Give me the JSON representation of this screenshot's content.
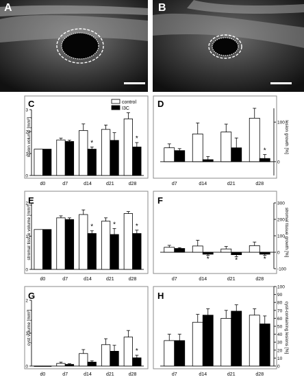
{
  "panels": {
    "A": {
      "letter": "A"
    },
    "B": {
      "letter": "B"
    }
  },
  "colors": {
    "control": "#ffffff",
    "I3C": "#000000",
    "axis": "#222222",
    "frame": "#8a8a8a"
  },
  "legend": {
    "control": "control",
    "treated": "I3C",
    "placement": "top-right of panel C"
  },
  "chart_data": [
    {
      "id": "C",
      "type": "bar",
      "ylabel": "lesion volume [mm³]",
      "ylim": [
        0,
        3
      ],
      "yticks": [
        0,
        1,
        2,
        3
      ],
      "categories": [
        "d0",
        "d7",
        "d14",
        "d21",
        "d28"
      ],
      "series": [
        {
          "name": "control",
          "values": [
            1.2,
            1.62,
            2.05,
            2.1,
            2.58
          ],
          "errors": [
            0.0,
            0.08,
            0.3,
            0.2,
            0.28
          ]
        },
        {
          "name": "I3C",
          "values": [
            1.2,
            1.55,
            1.2,
            1.6,
            1.3
          ],
          "errors": [
            0.0,
            0.06,
            0.1,
            0.35,
            0.2
          ]
        }
      ],
      "significance": [
        "",
        "",
        "*",
        "",
        "*"
      ]
    },
    {
      "id": "D",
      "type": "bar",
      "ylabel": "lesion growth [%]",
      "ylim": [
        -35,
        135
      ],
      "yticks": [
        0,
        100
      ],
      "zero_line": true,
      "categories": [
        "d7",
        "d14",
        "d21",
        "d28"
      ],
      "series": [
        {
          "name": "control",
          "values": [
            35,
            70,
            75,
            110
          ],
          "errors": [
            10,
            28,
            20,
            25
          ]
        },
        {
          "name": "I3C",
          "values": [
            28,
            5,
            35,
            8
          ],
          "errors": [
            5,
            8,
            25,
            10
          ]
        }
      ],
      "significance": [
        "",
        "",
        "",
        "*"
      ]
    },
    {
      "id": "E",
      "type": "bar",
      "ylabel": "stromal tissue volume [mm³]",
      "ylim": [
        0,
        2
      ],
      "yticks": [
        0,
        1,
        2
      ],
      "categories": [
        "d0",
        "d7",
        "d14",
        "d21",
        "d28"
      ],
      "series": [
        {
          "name": "control",
          "values": [
            1.2,
            1.55,
            1.65,
            1.45,
            1.68
          ],
          "errors": [
            0.0,
            0.06,
            0.14,
            0.1,
            0.06
          ]
        },
        {
          "name": "I3C",
          "values": [
            1.2,
            1.5,
            1.08,
            1.05,
            1.08
          ],
          "errors": [
            0.0,
            0.05,
            0.08,
            0.18,
            0.1
          ]
        }
      ],
      "significance": [
        "",
        "",
        "*",
        "*",
        "*"
      ]
    },
    {
      "id": "F",
      "type": "bar",
      "ylabel": "stromal tissue growth [%]",
      "ylim": [
        -100,
        300
      ],
      "yticks": [
        -100,
        0,
        100,
        200,
        300
      ],
      "zero_line": true,
      "categories": [
        "d7",
        "d14",
        "d21",
        "d28"
      ],
      "series": [
        {
          "name": "control",
          "values": [
            30,
            38,
            20,
            40
          ],
          "errors": [
            12,
            35,
            15,
            22
          ]
        },
        {
          "name": "I3C",
          "values": [
            23,
            -12,
            -15,
            -12
          ],
          "errors": [
            5,
            8,
            12,
            8
          ]
        }
      ],
      "significance": [
        "",
        "*",
        "*",
        "*"
      ]
    },
    {
      "id": "G",
      "type": "bar",
      "ylabel": "cyst volume [mm³]",
      "ylim": [
        0,
        2
      ],
      "yticks": [
        0,
        1,
        2
      ],
      "categories": [
        "d0",
        "d7",
        "d14",
        "d21",
        "d28"
      ],
      "series": [
        {
          "name": "control",
          "values": [
            0,
            0.08,
            0.38,
            0.65,
            0.88
          ],
          "errors": [
            0,
            0.04,
            0.12,
            0.18,
            0.2
          ]
        },
        {
          "name": "I3C",
          "values": [
            0,
            0.05,
            0.12,
            0.45,
            0.25
          ],
          "errors": [
            0,
            0.02,
            0.04,
            0.18,
            0.08
          ]
        }
      ],
      "significance": [
        "",
        "",
        "",
        "",
        "*"
      ]
    },
    {
      "id": "H",
      "type": "bar",
      "ylabel": "cyst-containing lesions [%]",
      "ylim": [
        0,
        100
      ],
      "yticks": [
        0,
        10,
        20,
        30,
        40,
        50,
        60,
        70,
        80,
        90,
        100
      ],
      "categories": [
        "d7",
        "d14",
        "d21",
        "d28"
      ],
      "series": [
        {
          "name": "control",
          "values": [
            32,
            55,
            60,
            64
          ],
          "errors": [
            8,
            10,
            10,
            8
          ]
        },
        {
          "name": "I3C",
          "values": [
            32,
            64,
            69,
            53
          ],
          "errors": [
            8,
            8,
            8,
            10
          ]
        }
      ],
      "significance": [
        "",
        "",
        "",
        ""
      ]
    }
  ]
}
